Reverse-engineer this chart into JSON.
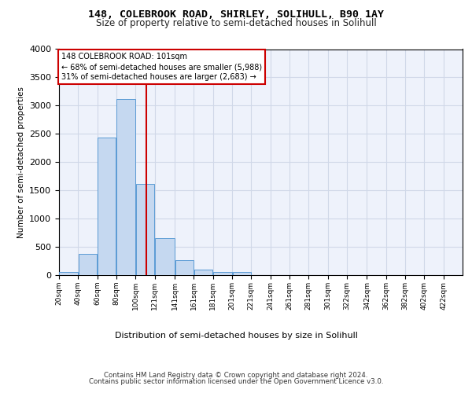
{
  "title_line1": "148, COLEBROOK ROAD, SHIRLEY, SOLIHULL, B90 1AY",
  "title_line2": "Size of property relative to semi-detached houses in Solihull",
  "xlabel": "Distribution of semi-detached houses by size in Solihull",
  "ylabel": "Number of semi-detached properties",
  "footer_line1": "Contains HM Land Registry data © Crown copyright and database right 2024.",
  "footer_line2": "Contains public sector information licensed under the Open Government Licence v3.0.",
  "annotation_title": "148 COLEBROOK ROAD: 101sqm",
  "annotation_line1": "← 68% of semi-detached houses are smaller (5,988)",
  "annotation_line2": "31% of semi-detached houses are larger (2,683) →",
  "property_size": 101,
  "bin_edges": [
    10,
    30,
    50,
    70,
    90,
    110,
    131,
    151,
    171,
    191,
    211,
    231,
    251,
    271,
    291,
    311,
    332,
    352,
    372,
    392,
    412,
    432
  ],
  "bar_heights": [
    50,
    380,
    2430,
    3120,
    1620,
    650,
    260,
    95,
    62,
    55,
    0,
    0,
    0,
    0,
    0,
    0,
    0,
    0,
    0,
    0,
    0
  ],
  "tick_labels": [
    "20sqm",
    "40sqm",
    "60sqm",
    "80sqm",
    "100sqm",
    "121sqm",
    "141sqm",
    "161sqm",
    "181sqm",
    "201sqm",
    "221sqm",
    "241sqm",
    "261sqm",
    "281sqm",
    "301sqm",
    "322sqm",
    "342sqm",
    "362sqm",
    "382sqm",
    "402sqm",
    "422sqm"
  ],
  "bar_color": "#c5d8f0",
  "bar_edge_color": "#5b9bd5",
  "grid_color": "#d0d8e8",
  "bg_color": "#eef2fb",
  "vline_color": "#cc0000",
  "annotation_box_color": "#cc0000",
  "ylim": [
    0,
    4000
  ],
  "yticks": [
    0,
    500,
    1000,
    1500,
    2000,
    2500,
    3000,
    3500,
    4000
  ]
}
